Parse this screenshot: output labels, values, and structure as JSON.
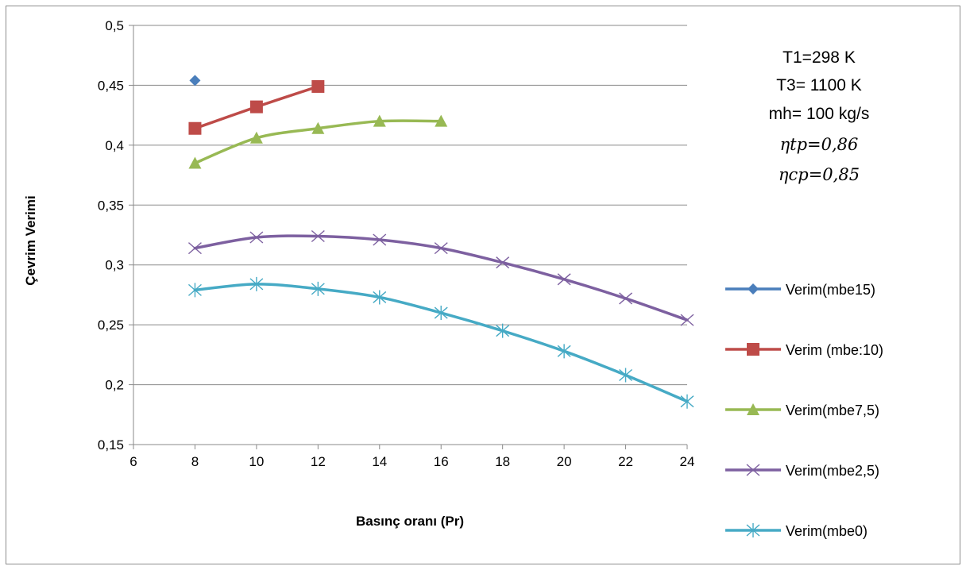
{
  "chart_data": {
    "type": "line",
    "title": "",
    "xlabel": "Basınç oranı (Pr)",
    "ylabel": "Çevrim Verimi",
    "xlim": [
      6,
      24
    ],
    "ylim": [
      0.15,
      0.5
    ],
    "x_ticks": [
      "6",
      "8",
      "10",
      "12",
      "14",
      "16",
      "18",
      "20",
      "22",
      "24"
    ],
    "y_ticks": [
      "0,15",
      "0,2",
      "0,25",
      "0,3",
      "0,35",
      "0,4",
      "0,45",
      "0,5"
    ],
    "grid": "horizontal",
    "legend_position": "right",
    "annotations": [
      "T1=298 K",
      "T3= 1100 K",
      "mh= 100 kg/s",
      "ηtp=0,86",
      "ηcp=0,85"
    ],
    "series": [
      {
        "name": "Verim(mbe15)",
        "color": "#4a7ebb",
        "marker": "diamond",
        "x": [
          8
        ],
        "y": [
          0.454
        ]
      },
      {
        "name": "Verim (mbe:10)",
        "color": "#be4b48",
        "marker": "square",
        "x": [
          8,
          10,
          12
        ],
        "y": [
          0.414,
          0.432,
          0.449
        ]
      },
      {
        "name": "Verim(mbe7,5)",
        "color": "#98b954",
        "marker": "triangle",
        "x": [
          8,
          10,
          12,
          14,
          16
        ],
        "y": [
          0.385,
          0.406,
          0.414,
          0.42,
          0.42
        ]
      },
      {
        "name": "Verim(mbe2,5)",
        "color": "#7d60a0",
        "marker": "x",
        "x": [
          8,
          10,
          12,
          14,
          16,
          18,
          20,
          22,
          24
        ],
        "y": [
          0.314,
          0.323,
          0.324,
          0.321,
          0.314,
          0.302,
          0.288,
          0.272,
          0.254
        ]
      },
      {
        "name": "Verim(mbe0)",
        "color": "#46aac5",
        "marker": "star",
        "x": [
          8,
          10,
          12,
          14,
          16,
          18,
          20,
          22,
          24
        ],
        "y": [
          0.279,
          0.284,
          0.28,
          0.273,
          0.26,
          0.245,
          0.228,
          0.208,
          0.186
        ]
      }
    ]
  }
}
